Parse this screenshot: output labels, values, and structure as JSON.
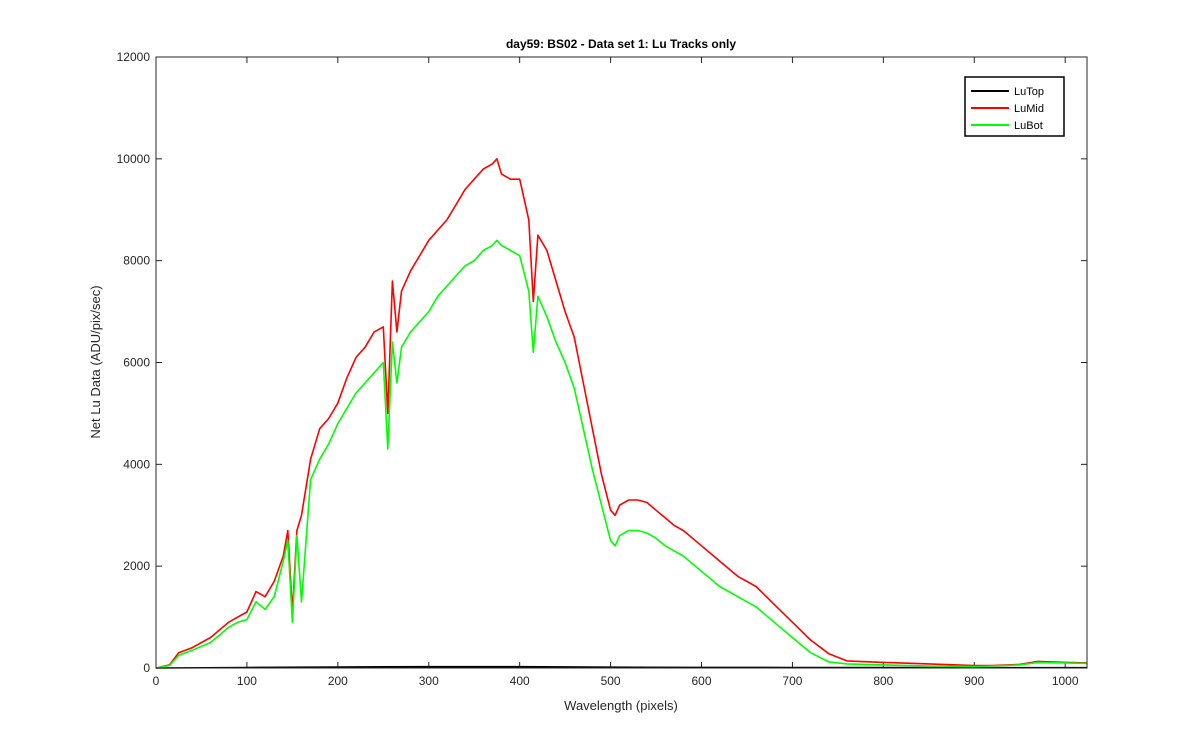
{
  "chart_data": {
    "type": "line",
    "title": "day59: BS02 - Data set 1: Lu Tracks only",
    "xlabel": "Wavelength (pixels)",
    "ylabel": "Net Lu Data (ADU/pix/sec)",
    "xlim": [
      0,
      1024
    ],
    "ylim": [
      0,
      12000
    ],
    "xticks": [
      0,
      100,
      200,
      300,
      400,
      500,
      600,
      700,
      800,
      900,
      1000
    ],
    "yticks": [
      0,
      2000,
      4000,
      6000,
      8000,
      10000,
      12000
    ],
    "grid": false,
    "legend_position": "top-right",
    "series": [
      {
        "name": "LuTop",
        "color": "#000000",
        "x": [
          0,
          100,
          200,
          300,
          400,
          500,
          600,
          700,
          800,
          900,
          1000,
          1024
        ],
        "y": [
          0,
          10,
          20,
          25,
          25,
          15,
          12,
          10,
          8,
          5,
          5,
          5
        ]
      },
      {
        "name": "LuMid",
        "color": "#ff0000",
        "x": [
          0,
          15,
          25,
          40,
          60,
          80,
          90,
          100,
          110,
          120,
          130,
          140,
          145,
          150,
          155,
          160,
          170,
          180,
          190,
          200,
          210,
          220,
          230,
          240,
          250,
          255,
          260,
          265,
          270,
          280,
          290,
          300,
          310,
          320,
          330,
          340,
          350,
          360,
          370,
          375,
          380,
          390,
          400,
          410,
          415,
          420,
          430,
          440,
          450,
          460,
          470,
          480,
          490,
          500,
          505,
          510,
          520,
          530,
          540,
          550,
          560,
          570,
          580,
          600,
          620,
          640,
          660,
          680,
          700,
          720,
          740,
          760,
          800,
          850,
          900,
          920,
          950,
          970,
          1000,
          1024
        ],
        "y": [
          0,
          60,
          300,
          400,
          600,
          900,
          1000,
          1100,
          1500,
          1400,
          1700,
          2200,
          2700,
          1100,
          2700,
          3000,
          4100,
          4700,
          4900,
          5200,
          5700,
          6100,
          6300,
          6600,
          6700,
          5000,
          7600,
          6600,
          7400,
          7800,
          8100,
          8400,
          8600,
          8800,
          9100,
          9400,
          9600,
          9800,
          9900,
          10000,
          9700,
          9600,
          9600,
          8800,
          7200,
          8500,
          8200,
          7600,
          7000,
          6500,
          5600,
          4700,
          3800,
          3100,
          3000,
          3200,
          3300,
          3300,
          3250,
          3100,
          2950,
          2800,
          2700,
          2400,
          2100,
          1800,
          1600,
          1250,
          900,
          550,
          280,
          140,
          110,
          80,
          50,
          50,
          70,
          130,
          110,
          100
        ]
      },
      {
        "name": "LuBot",
        "color": "#00ff00",
        "x": [
          0,
          15,
          25,
          40,
          60,
          80,
          90,
          100,
          110,
          120,
          130,
          140,
          145,
          150,
          155,
          160,
          170,
          180,
          190,
          200,
          210,
          220,
          230,
          240,
          250,
          255,
          260,
          265,
          270,
          280,
          290,
          300,
          310,
          320,
          330,
          340,
          350,
          360,
          370,
          375,
          380,
          390,
          400,
          410,
          415,
          420,
          430,
          440,
          450,
          460,
          470,
          480,
          490,
          500,
          505,
          510,
          520,
          530,
          540,
          550,
          560,
          570,
          580,
          600,
          620,
          640,
          660,
          680,
          700,
          720,
          740,
          760,
          800,
          850,
          900,
          920,
          950,
          970,
          1000,
          1024
        ],
        "y": [
          0,
          50,
          250,
          350,
          500,
          800,
          900,
          950,
          1300,
          1150,
          1400,
          2100,
          2500,
          900,
          2600,
          1300,
          3700,
          4100,
          4400,
          4800,
          5100,
          5400,
          5600,
          5800,
          6000,
          4300,
          6400,
          5600,
          6300,
          6600,
          6800,
          7000,
          7300,
          7500,
          7700,
          7900,
          8000,
          8200,
          8300,
          8400,
          8300,
          8200,
          8100,
          7400,
          6200,
          7300,
          6900,
          6400,
          6000,
          5500,
          4700,
          3900,
          3200,
          2500,
          2400,
          2600,
          2700,
          2700,
          2650,
          2550,
          2400,
          2300,
          2200,
          1900,
          1600,
          1400,
          1200,
          900,
          600,
          300,
          120,
          80,
          60,
          40,
          30,
          40,
          60,
          110,
          100,
          90
        ]
      }
    ]
  }
}
